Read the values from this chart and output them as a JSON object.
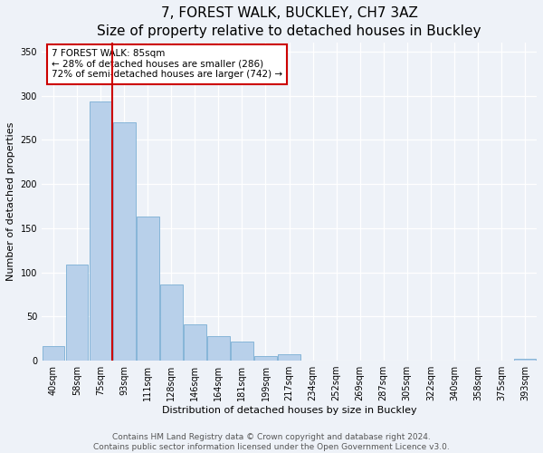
{
  "title": "7, FOREST WALK, BUCKLEY, CH7 3AZ",
  "subtitle": "Size of property relative to detached houses in Buckley",
  "xlabel": "Distribution of detached houses by size in Buckley",
  "ylabel": "Number of detached properties",
  "categories": [
    "40sqm",
    "58sqm",
    "75sqm",
    "93sqm",
    "111sqm",
    "128sqm",
    "146sqm",
    "164sqm",
    "181sqm",
    "199sqm",
    "217sqm",
    "234sqm",
    "252sqm",
    "269sqm",
    "287sqm",
    "305sqm",
    "322sqm",
    "340sqm",
    "358sqm",
    "375sqm",
    "393sqm"
  ],
  "values": [
    17,
    109,
    293,
    270,
    163,
    86,
    41,
    28,
    22,
    5,
    7,
    0,
    0,
    0,
    0,
    0,
    0,
    0,
    0,
    0,
    2
  ],
  "bar_color": "#b8d0ea",
  "bar_edge_color": "#7aaed4",
  "vline_color": "#cc0000",
  "vline_index": 2.5,
  "annotation_text": "7 FOREST WALK: 85sqm\n← 28% of detached houses are smaller (286)\n72% of semi-detached houses are larger (742) →",
  "annotation_box_color": "white",
  "annotation_box_edge": "#cc0000",
  "ylim": [
    0,
    360
  ],
  "yticks": [
    0,
    50,
    100,
    150,
    200,
    250,
    300,
    350
  ],
  "footer_line1": "Contains HM Land Registry data © Crown copyright and database right 2024.",
  "footer_line2": "Contains public sector information licensed under the Open Government Licence v3.0.",
  "bg_color": "#eef2f8",
  "title_fontsize": 11,
  "axis_label_fontsize": 8,
  "tick_fontsize": 7,
  "annotation_fontsize": 7.5,
  "footer_fontsize": 6.5
}
